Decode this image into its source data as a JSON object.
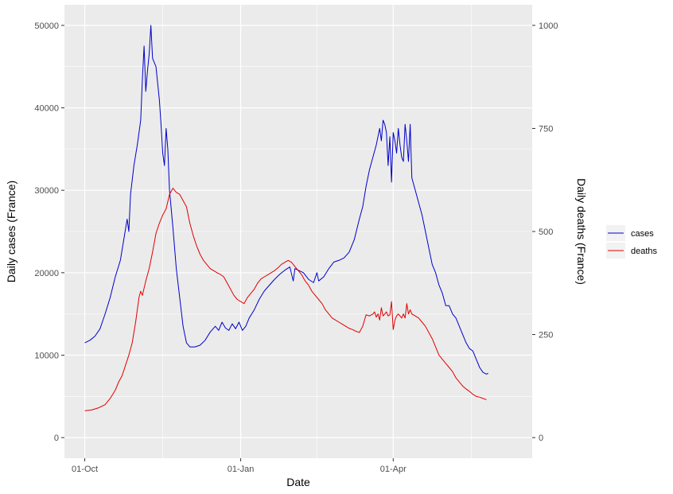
{
  "chart_data": {
    "type": "line",
    "title": "",
    "xlabel": "Date",
    "ylabel_left": "Daily cases (France)",
    "ylabel_right": "Daily deaths (France)",
    "x_start": "01-Oct",
    "x_ticks": [
      {
        "day": 0,
        "label": "01-Oct"
      },
      {
        "day": 92,
        "label": "01-Jan"
      },
      {
        "day": 182,
        "label": "01-Apr"
      }
    ],
    "x_minor_days": [
      46,
      137,
      228
    ],
    "xlim": [
      -12,
      264
    ],
    "ylim_left": [
      -2500,
      52500
    ],
    "ylim_right": [
      -50,
      1050
    ],
    "y_ticks_left": [
      0,
      10000,
      20000,
      30000,
      40000,
      50000
    ],
    "y_ticks_right": [
      0,
      250,
      500,
      750,
      1000
    ],
    "legend_position": "right",
    "colors": {
      "cases": "#0000CC",
      "deaths": "#E00000",
      "panel": "#EBEBEB",
      "grid": "#FFFFFF"
    },
    "series": [
      {
        "name": "cases",
        "axis": "left",
        "color": "#0000CC",
        "points": [
          [
            0,
            11500
          ],
          [
            3,
            11800
          ],
          [
            6,
            12300
          ],
          [
            9,
            13200
          ],
          [
            12,
            15000
          ],
          [
            15,
            17000
          ],
          [
            18,
            19500
          ],
          [
            21,
            21500
          ],
          [
            23,
            24000
          ],
          [
            25,
            26500
          ],
          [
            26,
            25000
          ],
          [
            27,
            29500
          ],
          [
            29,
            33000
          ],
          [
            31,
            35500
          ],
          [
            33,
            38500
          ],
          [
            34,
            43500
          ],
          [
            35,
            47500
          ],
          [
            36,
            42000
          ],
          [
            37,
            44500
          ],
          [
            38,
            46500
          ],
          [
            39,
            50000
          ],
          [
            40,
            46000
          ],
          [
            41,
            45500
          ],
          [
            42,
            45000
          ],
          [
            44,
            41000
          ],
          [
            45,
            38000
          ],
          [
            46,
            34500
          ],
          [
            47,
            33000
          ],
          [
            48,
            37500
          ],
          [
            49,
            35000
          ],
          [
            50,
            30000
          ],
          [
            52,
            25500
          ],
          [
            54,
            20500
          ],
          [
            56,
            17000
          ],
          [
            58,
            13500
          ],
          [
            60,
            11500
          ],
          [
            62,
            11000
          ],
          [
            65,
            11000
          ],
          [
            68,
            11200
          ],
          [
            71,
            11800
          ],
          [
            74,
            12800
          ],
          [
            77,
            13500
          ],
          [
            79,
            13000
          ],
          [
            81,
            14000
          ],
          [
            83,
            13300
          ],
          [
            85,
            13000
          ],
          [
            87,
            13800
          ],
          [
            89,
            13200
          ],
          [
            91,
            14000
          ],
          [
            93,
            13000
          ],
          [
            95,
            13500
          ],
          [
            97,
            14500
          ],
          [
            100,
            15500
          ],
          [
            103,
            16800
          ],
          [
            106,
            17800
          ],
          [
            109,
            18500
          ],
          [
            112,
            19200
          ],
          [
            115,
            19800
          ],
          [
            118,
            20300
          ],
          [
            121,
            20700
          ],
          [
            123,
            19000
          ],
          [
            124,
            20500
          ],
          [
            126,
            20300
          ],
          [
            129,
            20000
          ],
          [
            132,
            19200
          ],
          [
            135,
            18800
          ],
          [
            137,
            20000
          ],
          [
            138,
            19000
          ],
          [
            141,
            19500
          ],
          [
            144,
            20500
          ],
          [
            147,
            21300
          ],
          [
            150,
            21500
          ],
          [
            153,
            21800
          ],
          [
            156,
            22500
          ],
          [
            159,
            24000
          ],
          [
            162,
            26500
          ],
          [
            164,
            28000
          ],
          [
            166,
            30500
          ],
          [
            168,
            32500
          ],
          [
            170,
            34000
          ],
          [
            172,
            35500
          ],
          [
            174,
            37500
          ],
          [
            175,
            36000
          ],
          [
            176,
            38500
          ],
          [
            177,
            38000
          ],
          [
            178,
            37000
          ],
          [
            179,
            33000
          ],
          [
            180,
            36500
          ],
          [
            181,
            31000
          ],
          [
            182,
            37000
          ],
          [
            183,
            36000
          ],
          [
            184,
            34500
          ],
          [
            185,
            37500
          ],
          [
            186,
            35500
          ],
          [
            187,
            34000
          ],
          [
            188,
            33500
          ],
          [
            189,
            38000
          ],
          [
            190,
            36000
          ],
          [
            191,
            33500
          ],
          [
            192,
            38000
          ],
          [
            193,
            31500
          ],
          [
            195,
            30000
          ],
          [
            197,
            28500
          ],
          [
            199,
            27000
          ],
          [
            201,
            25000
          ],
          [
            203,
            23000
          ],
          [
            205,
            21000
          ],
          [
            207,
            20000
          ],
          [
            209,
            18500
          ],
          [
            211,
            17500
          ],
          [
            213,
            16000
          ],
          [
            215,
            16000
          ],
          [
            217,
            15000
          ],
          [
            219,
            14500
          ],
          [
            221,
            13500
          ],
          [
            223,
            12500
          ],
          [
            225,
            11500
          ],
          [
            227,
            10800
          ],
          [
            229,
            10500
          ],
          [
            231,
            9500
          ],
          [
            233,
            8500
          ],
          [
            235,
            7900
          ],
          [
            237,
            7700
          ],
          [
            238,
            7800
          ]
        ]
      },
      {
        "name": "deaths",
        "axis": "right",
        "color": "#E00000",
        "points": [
          [
            0,
            65
          ],
          [
            4,
            67
          ],
          [
            8,
            72
          ],
          [
            12,
            80
          ],
          [
            15,
            95
          ],
          [
            18,
            115
          ],
          [
            20,
            135
          ],
          [
            22,
            150
          ],
          [
            24,
            175
          ],
          [
            26,
            200
          ],
          [
            28,
            230
          ],
          [
            30,
            280
          ],
          [
            32,
            340
          ],
          [
            33,
            355
          ],
          [
            34,
            345
          ],
          [
            36,
            380
          ],
          [
            38,
            410
          ],
          [
            40,
            450
          ],
          [
            42,
            495
          ],
          [
            44,
            520
          ],
          [
            46,
            540
          ],
          [
            48,
            555
          ],
          [
            50,
            590
          ],
          [
            52,
            605
          ],
          [
            54,
            595
          ],
          [
            56,
            590
          ],
          [
            58,
            575
          ],
          [
            60,
            560
          ],
          [
            62,
            520
          ],
          [
            64,
            490
          ],
          [
            66,
            465
          ],
          [
            68,
            445
          ],
          [
            70,
            430
          ],
          [
            72,
            420
          ],
          [
            74,
            410
          ],
          [
            76,
            405
          ],
          [
            78,
            400
          ],
          [
            80,
            396
          ],
          [
            82,
            390
          ],
          [
            84,
            375
          ],
          [
            86,
            360
          ],
          [
            88,
            345
          ],
          [
            90,
            335
          ],
          [
            92,
            330
          ],
          [
            94,
            325
          ],
          [
            96,
            340
          ],
          [
            98,
            350
          ],
          [
            100,
            360
          ],
          [
            102,
            375
          ],
          [
            104,
            385
          ],
          [
            106,
            390
          ],
          [
            108,
            395
          ],
          [
            110,
            400
          ],
          [
            112,
            405
          ],
          [
            114,
            412
          ],
          [
            116,
            420
          ],
          [
            118,
            425
          ],
          [
            120,
            430
          ],
          [
            122,
            425
          ],
          [
            124,
            415
          ],
          [
            126,
            405
          ],
          [
            128,
            395
          ],
          [
            130,
            380
          ],
          [
            132,
            370
          ],
          [
            134,
            355
          ],
          [
            136,
            345
          ],
          [
            138,
            335
          ],
          [
            140,
            325
          ],
          [
            142,
            310
          ],
          [
            144,
            300
          ],
          [
            146,
            290
          ],
          [
            148,
            285
          ],
          [
            150,
            280
          ],
          [
            152,
            275
          ],
          [
            154,
            270
          ],
          [
            156,
            265
          ],
          [
            158,
            262
          ],
          [
            160,
            258
          ],
          [
            162,
            255
          ],
          [
            164,
            270
          ],
          [
            166,
            298
          ],
          [
            168,
            295
          ],
          [
            170,
            300
          ],
          [
            171,
            305
          ],
          [
            172,
            292
          ],
          [
            173,
            300
          ],
          [
            174,
            285
          ],
          [
            175,
            315
          ],
          [
            176,
            295
          ],
          [
            177,
            300
          ],
          [
            178,
            305
          ],
          [
            179,
            295
          ],
          [
            180,
            298
          ],
          [
            181,
            330
          ],
          [
            182,
            262
          ],
          [
            183,
            285
          ],
          [
            184,
            295
          ],
          [
            185,
            300
          ],
          [
            186,
            295
          ],
          [
            187,
            290
          ],
          [
            188,
            300
          ],
          [
            189,
            290
          ],
          [
            190,
            325
          ],
          [
            191,
            300
          ],
          [
            192,
            310
          ],
          [
            193,
            300
          ],
          [
            195,
            295
          ],
          [
            197,
            290
          ],
          [
            199,
            280
          ],
          [
            201,
            270
          ],
          [
            203,
            255
          ],
          [
            205,
            240
          ],
          [
            207,
            220
          ],
          [
            209,
            200
          ],
          [
            211,
            190
          ],
          [
            213,
            180
          ],
          [
            215,
            170
          ],
          [
            217,
            160
          ],
          [
            219,
            145
          ],
          [
            221,
            135
          ],
          [
            223,
            125
          ],
          [
            225,
            118
          ],
          [
            227,
            112
          ],
          [
            229,
            105
          ],
          [
            231,
            100
          ],
          [
            233,
            98
          ],
          [
            235,
            95
          ],
          [
            237,
            92
          ]
        ]
      }
    ]
  }
}
